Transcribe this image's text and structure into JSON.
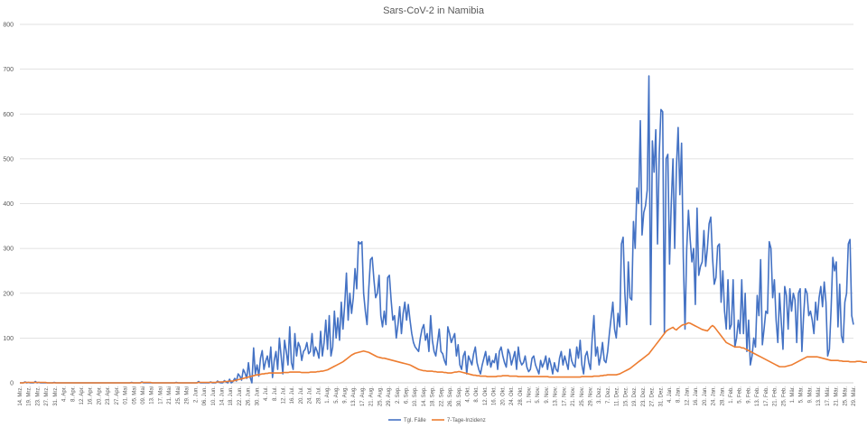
{
  "chart_data": {
    "type": "line",
    "title": "Sars-CoV-2 in Namibia",
    "xlabel": "",
    "ylabel": "",
    "ylim": [
      0,
      800
    ],
    "yticks": [
      0,
      100,
      200,
      300,
      400,
      500,
      600,
      700,
      800
    ],
    "grid": true,
    "legend_position": "bottom",
    "x_start": "14. Mrz.",
    "x_end": "29. Mrz.",
    "x_tick_labels": [
      "14. Mrz.",
      "19. Mrz.",
      "23. Mrz.",
      "27. Mrz.",
      "31. Mrz.",
      "4. Apr.",
      "8. Apr.",
      "12. Apr.",
      "16. Apr.",
      "20. Apr.",
      "23. Apr.",
      "27. Apr.",
      "01. Mai",
      "05. Mai",
      "09. Mai",
      "13. Mai",
      "17. Mai",
      "21. Mai",
      "25. Mai",
      "29. Mai",
      "2. Jun.",
      "06. Jun.",
      "10. Jun.",
      "14. Jun.",
      "18. Jun.",
      "22. Jun.",
      "26. Jun.",
      "30. Jun.",
      "4. Jul.",
      "8. Jul.",
      "12. Jul.",
      "16. Jul.",
      "20. Jul.",
      "24. Jul.",
      "28. Jul.",
      "1. Aug.",
      "5. Aug.",
      "9. Aug.",
      "13. Aug.",
      "17. Aug.",
      "21. Aug.",
      "25. Aug.",
      "29. Aug.",
      "2. Sep.",
      "6. Sep.",
      "10. Sep.",
      "14. Sep.",
      "18. Sep.",
      "22. Sep.",
      "26. Sep.",
      "30. Sep.",
      "4. Okt.",
      "8. Okt.",
      "12. Okt.",
      "16. Okt.",
      "20. Okt.",
      "24. Okt.",
      "28. Okt.",
      "1. Nov.",
      "5. Nov.",
      "9. Nov.",
      "13. Nov.",
      "17. Nov.",
      "21. Nov.",
      "25. Nov.",
      "29. Nov.",
      "3. Dez.",
      "7. Dez.",
      "11. Dez.",
      "15. Dez.",
      "19. Dez.",
      "23. Dez.",
      "27. Dez.",
      "31. Dez.",
      "4. Jan.",
      "8. Jan.",
      "12. Jan.",
      "16. Jan.",
      "20. Jan.",
      "24. Jan.",
      "28. Jan.",
      "1. Feb.",
      "5. Feb.",
      "9. Feb.",
      "13. Feb.",
      "17. Feb.",
      "21. Feb.",
      "25. Feb.",
      "1. Mär.",
      "5. Mär.",
      "9. Mär.",
      "13. Mär.",
      "17. Mär.",
      "21. Mär.",
      "25. Mär.",
      "29. Mär."
    ],
    "series": [
      {
        "name": "Tgl. Fälle",
        "color": "#4472C4",
        "values": [
          0,
          0,
          0,
          2,
          0,
          1,
          0,
          0,
          0,
          3,
          0,
          1,
          0,
          0,
          0,
          0,
          0,
          0,
          0,
          0,
          1,
          0,
          0,
          0,
          0,
          0,
          0,
          0,
          0,
          0,
          0,
          0,
          0,
          0,
          0,
          0,
          0,
          0,
          0,
          0,
          0,
          0,
          0,
          0,
          0,
          0,
          0,
          0,
          0,
          0,
          0,
          0,
          0,
          0,
          0,
          0,
          0,
          0,
          0,
          0,
          0,
          0,
          0,
          0,
          0,
          1,
          0,
          0,
          0,
          0,
          0,
          2,
          0,
          0,
          0,
          0,
          0,
          0,
          0,
          0,
          0,
          0,
          0,
          0,
          0,
          0,
          0,
          0,
          0,
          0,
          0,
          1,
          0,
          0,
          0,
          0,
          0,
          0,
          0,
          0,
          0,
          0,
          0,
          0,
          3,
          0,
          0,
          0,
          0,
          0,
          0,
          2,
          0,
          0,
          0,
          4,
          1,
          0,
          0,
          5,
          2,
          0,
          8,
          0,
          3,
          10,
          4,
          20,
          15,
          6,
          30,
          22,
          10,
          45,
          12,
          0,
          78,
          20,
          40,
          15,
          55,
          72,
          30,
          48,
          60,
          35,
          80,
          12,
          50,
          70,
          30,
          100,
          60,
          20,
          95,
          70,
          40,
          125,
          45,
          30,
          110,
          60,
          90,
          80,
          50,
          70,
          75,
          90,
          65,
          70,
          110,
          60,
          80,
          70,
          55,
          115,
          60,
          90,
          140,
          75,
          150,
          60,
          80,
          160,
          100,
          145,
          95,
          180,
          120,
          175,
          245,
          140,
          200,
          155,
          190,
          255,
          210,
          315,
          310,
          315,
          200,
          160,
          130,
          210,
          275,
          280,
          230,
          190,
          200,
          240,
          150,
          125,
          160,
          130,
          235,
          240,
          185,
          140,
          150,
          100,
          130,
          170,
          110,
          155,
          180,
          140,
          175,
          140,
          110,
          90,
          80,
          75,
          70,
          100,
          120,
          130,
          95,
          110,
          70,
          150,
          95,
          70,
          60,
          90,
          120,
          70,
          65,
          50,
          40,
          125,
          110,
          90,
          100,
          110,
          60,
          85,
          40,
          30,
          60,
          70,
          20,
          60,
          50,
          40,
          65,
          80,
          45,
          30,
          20,
          40,
          55,
          70,
          40,
          60,
          35,
          50,
          45,
          65,
          30,
          70,
          80,
          60,
          45,
          35,
          75,
          65,
          40,
          55,
          70,
          30,
          80,
          50,
          40,
          45,
          60,
          35,
          25,
          30,
          55,
          60,
          40,
          30,
          20,
          50,
          35,
          45,
          60,
          30,
          55,
          40,
          20,
          45,
          30,
          25,
          55,
          70,
          40,
          60,
          45,
          30,
          75,
          50,
          40,
          35,
          80,
          55,
          95,
          40,
          20,
          60,
          70,
          45,
          30,
          100,
          150,
          60,
          80,
          40,
          60,
          90,
          50,
          45,
          70,
          110,
          145,
          180,
          120,
          100,
          155,
          125,
          310,
          325,
          200,
          130,
          270,
          190,
          185,
          360,
          300,
          435,
          400,
          585,
          330,
          380,
          395,
          430,
          685,
          130,
          540,
          470,
          565,
          310,
          510,
          610,
          605,
          110,
          500,
          510,
          265,
          400,
          500,
          300,
          480,
          570,
          420,
          535,
          280,
          120,
          300,
          385,
          320,
          270,
          300,
          175,
          390,
          240,
          260,
          270,
          340,
          260,
          300,
          355,
          370,
          280,
          220,
          235,
          305,
          310,
          180,
          250,
          160,
          120,
          230,
          120,
          130,
          230,
          80,
          100,
          140,
          110,
          230,
          110,
          200,
          70,
          140,
          40,
          60,
          100,
          80,
          195,
          150,
          275,
          85,
          120,
          160,
          155,
          315,
          300,
          190,
          230,
          140,
          90,
          200,
          135,
          75,
          215,
          195,
          120,
          210,
          160,
          200,
          185,
          90,
          200,
          210,
          70,
          150,
          210,
          200,
          150,
          160,
          140,
          110,
          180,
          140,
          190,
          215,
          170,
          225,
          180,
          60,
          75,
          165,
          280,
          250,
          270,
          125,
          220,
          105,
          90,
          180,
          200,
          310,
          320,
          150,
          130
        ]
      },
      {
        "name": "7-Tage-Inzidenz",
        "color": "#ED7D31",
        "values": [
          0,
          0,
          0,
          1,
          1,
          1,
          1,
          1,
          1,
          1,
          1,
          1,
          1,
          1,
          1,
          1,
          0,
          0,
          0,
          0,
          0,
          0,
          0,
          0,
          0,
          0,
          0,
          0,
          0,
          0,
          0,
          0,
          0,
          0,
          0,
          0,
          0,
          0,
          0,
          0,
          0,
          0,
          0,
          0,
          0,
          0,
          0,
          0,
          0,
          0,
          0,
          0,
          0,
          0,
          0,
          0,
          0,
          0,
          0,
          0,
          0,
          0,
          0,
          0,
          0,
          0,
          0,
          0,
          0,
          0,
          0,
          1,
          1,
          1,
          1,
          1,
          1,
          0,
          0,
          0,
          0,
          0,
          0,
          0,
          0,
          0,
          0,
          0,
          0,
          0,
          0,
          0,
          0,
          0,
          0,
          0,
          0,
          0,
          0,
          0,
          0,
          0,
          0,
          0,
          1,
          1,
          1,
          1,
          1,
          1,
          1,
          1,
          1,
          1,
          1,
          2,
          2,
          2,
          2,
          3,
          3,
          3,
          4,
          4,
          4,
          5,
          6,
          7,
          8,
          9,
          10,
          11,
          12,
          13,
          14,
          15,
          16,
          17,
          18,
          18,
          19,
          20,
          20,
          21,
          21,
          22,
          22,
          22,
          22,
          22,
          22,
          22,
          22,
          23,
          23,
          23,
          23,
          24,
          24,
          24,
          24,
          24,
          24,
          24,
          23,
          23,
          23,
          23,
          23,
          24,
          24,
          24,
          24,
          25,
          25,
          26,
          26,
          27,
          28,
          29,
          31,
          33,
          35,
          37,
          39,
          41,
          43,
          45,
          47,
          50,
          53,
          56,
          59,
          62,
          64,
          66,
          67,
          68,
          69,
          70,
          71,
          70,
          69,
          68,
          66,
          64,
          62,
          60,
          58,
          57,
          56,
          55,
          55,
          54,
          53,
          52,
          51,
          50,
          49,
          48,
          47,
          46,
          45,
          44,
          43,
          42,
          41,
          40,
          38,
          36,
          34,
          32,
          30,
          29,
          28,
          27,
          27,
          26,
          26,
          26,
          26,
          25,
          25,
          24,
          24,
          24,
          24,
          23,
          23,
          22,
          22,
          22,
          23,
          24,
          24,
          25,
          25,
          24,
          23,
          22,
          21,
          20,
          19,
          18,
          17,
          17,
          16,
          16,
          15,
          15,
          15,
          15,
          14,
          14,
          14,
          14,
          14,
          14,
          15,
          15,
          15,
          16,
          16,
          16,
          16,
          15,
          15,
          15,
          15,
          15,
          14,
          14,
          14,
          14,
          14,
          14,
          14,
          14,
          14,
          14,
          14,
          14,
          14,
          14,
          14,
          14,
          14,
          14,
          13,
          13,
          13,
          13,
          13,
          13,
          13,
          13,
          13,
          13,
          13,
          13,
          13,
          13,
          13,
          13,
          13,
          13,
          13,
          14,
          14,
          14,
          14,
          14,
          14,
          14,
          15,
          15,
          15,
          15,
          16,
          16,
          17,
          17,
          18,
          18,
          18,
          18,
          18,
          18,
          19,
          20,
          22,
          24,
          26,
          28,
          30,
          32,
          35,
          38,
          41,
          44,
          47,
          50,
          53,
          56,
          59,
          62,
          65,
          70,
          75,
          80,
          85,
          90,
          95,
          100,
          105,
          110,
          115,
          118,
          120,
          122,
          124,
          120,
          118,
          122,
          125,
          128,
          130,
          130,
          132,
          134,
          133,
          131,
          129,
          127,
          125,
          123,
          121,
          119,
          118,
          117,
          116,
          120,
          125,
          128,
          125,
          120,
          115,
          110,
          105,
          100,
          95,
          90,
          88,
          86,
          84,
          82,
          80,
          80,
          80,
          80,
          78,
          78,
          76,
          74,
          72,
          70,
          68,
          66,
          64,
          62,
          60,
          58,
          56,
          54,
          52,
          50,
          48,
          46,
          44,
          42,
          40,
          38,
          36,
          36,
          36,
          36,
          37,
          38,
          39,
          40,
          42,
          44,
          46,
          48,
          50,
          52,
          54,
          56,
          58,
          58,
          58,
          58,
          58,
          58,
          58,
          57,
          56,
          55,
          54,
          53,
          52,
          51,
          50,
          50,
          50,
          50,
          50,
          49,
          49,
          48,
          48,
          48,
          48,
          47,
          47,
          47,
          47,
          48,
          48,
          48,
          47,
          46,
          46,
          46,
          46,
          46,
          46,
          46,
          46,
          47,
          48,
          49,
          50,
          51,
          52,
          52,
          52,
          51,
          50,
          48,
          46,
          44,
          44,
          44,
          44,
          44
        ]
      }
    ]
  }
}
